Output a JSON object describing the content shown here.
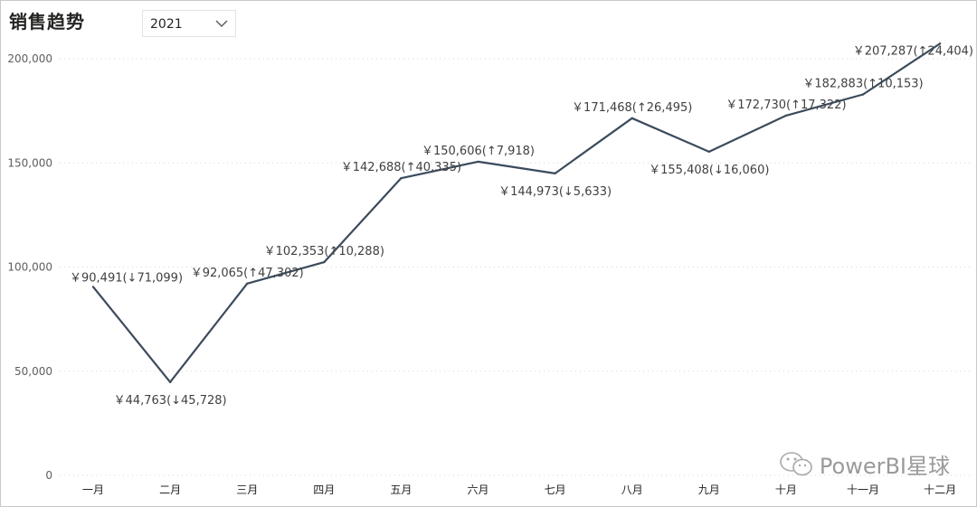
{
  "title": "销售趋势",
  "filter": {
    "selected": "2021"
  },
  "watermark": {
    "text": "PowerBI星球",
    "icon": "wechat-icon"
  },
  "colors": {
    "line": "#3b4b5c",
    "grid": "#d6d6d6"
  },
  "chart_data": {
    "type": "line",
    "categories": [
      "一月",
      "二月",
      "三月",
      "四月",
      "五月",
      "六月",
      "七月",
      "八月",
      "九月",
      "十月",
      "十一月",
      "十二月"
    ],
    "values": [
      90491,
      44763,
      92065,
      102353,
      142688,
      150606,
      144973,
      171468,
      155408,
      172730,
      182883,
      207287
    ],
    "labels": [
      "￥90,491(↓71,099)",
      "￥44,763(↓45,728)",
      "￥92,065(↑47,302)",
      "￥102,353(↑10,288)",
      "￥142,688(↑40,335)",
      "￥150,606(↑7,918)",
      "￥144,973(↓5,633)",
      "￥171,468(↑26,495)",
      "￥155,408(↓16,060)",
      "￥172,730(↑17,322)",
      "￥182,883(↑10,153)",
      "￥207,287(↑24,404)"
    ],
    "ylim": [
      0,
      210000
    ],
    "yticks": [
      0,
      50000,
      100000,
      150000,
      200000
    ],
    "ytick_labels": [
      "0",
      "50,000",
      "100,000",
      "150,000",
      "200,000"
    ],
    "grid": true,
    "legend": "none",
    "xlabel": "",
    "ylabel": ""
  }
}
